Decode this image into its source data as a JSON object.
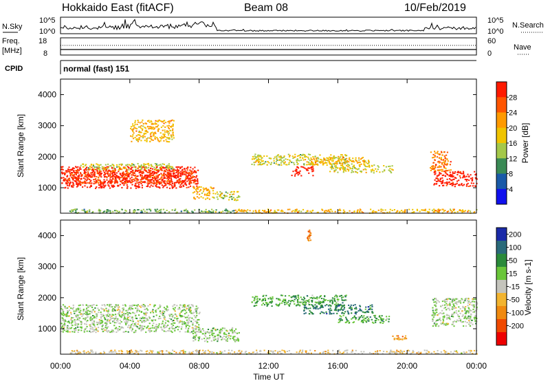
{
  "header": {
    "station": "Hokkaido East (fitACF)",
    "beam": "Beam 08",
    "date": "10/Feb/2019"
  },
  "nsky_panel": {
    "left_label": "N.Sky",
    "left_ticks": [
      "10^5",
      "10^0"
    ],
    "right_label": "N.Search",
    "right_ticks": [
      "10^5",
      "10^0"
    ]
  },
  "freq_panel": {
    "left_label_1": "Freq.",
    "left_label_2": "[MHz]",
    "left_ticks": [
      "18",
      "8"
    ],
    "right_label": "Nave",
    "right_ticks": [
      "60",
      "0"
    ]
  },
  "cpid_panel": {
    "label": "CPID",
    "mode": "normal (fast) 151"
  },
  "x_axis": {
    "label": "Time UT",
    "ticks": [
      "00:00",
      "04:00",
      "08:00",
      "12:00",
      "16:00",
      "20:00",
      "00:00"
    ]
  },
  "power_panel": {
    "ylabel": "Slant Range [km]",
    "colorbar_label": "Power [dB]",
    "colorbar_ticks": [
      "28",
      "24",
      "20",
      "16",
      "12",
      "8",
      "4"
    ],
    "colors": [
      "#ff1a00",
      "#ff5500",
      "#ff9a00",
      "#f0c400",
      "#a4c84a",
      "#3a8a55",
      "#1a5aa8",
      "#1010ee"
    ]
  },
  "velocity_panel": {
    "ylabel": "Slant Range [km]",
    "colorbar_label": "Velocity [m s-1]",
    "colorbar_ticks": [
      "200",
      "100",
      "50",
      "15",
      "-15",
      "-50",
      "-100",
      "-200"
    ],
    "colors": [
      "#1a2aa8",
      "#2a6a7a",
      "#2a8a3a",
      "#6ac63a",
      "#c4c4bc",
      "#f2b430",
      "#f08a10",
      "#f04a00",
      "#ee0000"
    ]
  },
  "chart_data": {
    "type": "heatmap",
    "x_unit": "hours UT",
    "xlim": [
      0,
      24
    ],
    "ylim": [
      180,
      4500
    ],
    "y_ticks": [
      1000,
      2000,
      3000,
      4000
    ],
    "power_regions": [
      {
        "t0": 0.0,
        "t1": 7.9,
        "r0": 1000,
        "r1": 1700,
        "level": 0
      },
      {
        "t0": 0.2,
        "t1": 7.8,
        "r0": 1150,
        "r1": 1600,
        "level": 1
      },
      {
        "t0": 1.0,
        "t1": 6.5,
        "r0": 1600,
        "r1": 1800,
        "level": 4
      },
      {
        "t0": 7.6,
        "t1": 8.8,
        "r0": 650,
        "r1": 1050,
        "level": 3
      },
      {
        "t0": 8.8,
        "t1": 10.3,
        "r0": 600,
        "r1": 900,
        "level": 4
      },
      {
        "t0": 0.5,
        "t1": 10.0,
        "r0": 200,
        "r1": 330,
        "level": 5
      },
      {
        "t0": 10.0,
        "t1": 24.0,
        "r0": 200,
        "r1": 330,
        "level": 3
      },
      {
        "t0": 11.0,
        "t1": 16.5,
        "r0": 1750,
        "r1": 2100,
        "level": 4
      },
      {
        "t0": 13.3,
        "t1": 14.6,
        "r0": 1400,
        "r1": 1700,
        "level": 0
      },
      {
        "t0": 14.2,
        "t1": 17.8,
        "r0": 1750,
        "r1": 2000,
        "level": 3
      },
      {
        "t0": 15.5,
        "t1": 19.2,
        "r0": 1500,
        "r1": 1750,
        "level": 4
      },
      {
        "t0": 21.5,
        "t1": 24.0,
        "r0": 1050,
        "r1": 1550,
        "level": 0
      },
      {
        "t0": 21.3,
        "t1": 22.5,
        "r0": 1550,
        "r1": 2200,
        "level": 2
      },
      {
        "t0": 4.0,
        "t1": 6.5,
        "r0": 2500,
        "r1": 3200,
        "level": 3
      }
    ],
    "velocity_regions": [
      {
        "t0": 0.0,
        "t1": 8.0,
        "r0": 900,
        "r1": 1800,
        "level": 4
      },
      {
        "t0": 7.6,
        "t1": 10.3,
        "r0": 600,
        "r1": 1050,
        "level": 4
      },
      {
        "t0": 11.0,
        "t1": 16.5,
        "r0": 1750,
        "r1": 2100,
        "level": 3
      },
      {
        "t0": 14.0,
        "t1": 18.0,
        "r0": 1500,
        "r1": 1800,
        "level": 2
      },
      {
        "t0": 16.0,
        "t1": 19.0,
        "r0": 1200,
        "r1": 1450,
        "level": 3
      },
      {
        "t0": 21.4,
        "t1": 24.0,
        "r0": 1100,
        "r1": 2000,
        "level": 4
      },
      {
        "t0": 0.5,
        "t1": 24.0,
        "r0": 200,
        "r1": 330,
        "level": 5
      },
      {
        "t0": 14.2,
        "t1": 14.4,
        "r0": 3850,
        "r1": 4200,
        "level": 7
      },
      {
        "t0": 19.0,
        "t1": 20.0,
        "r0": 650,
        "r1": 800,
        "level": 6
      }
    ],
    "nsky_profile": [
      {
        "t0": 0,
        "t1": 3.5,
        "level": 0.35
      },
      {
        "t0": 3.5,
        "t1": 7.0,
        "level": 0.45
      },
      {
        "t0": 7.0,
        "t1": 9.0,
        "level": 0.55
      },
      {
        "t0": 9.0,
        "t1": 21.0,
        "level": 0.12
      },
      {
        "t0": 21.0,
        "t1": 24.0,
        "level": 0.3
      }
    ],
    "freq_mhz": 10.5,
    "nave_line": 18
  }
}
